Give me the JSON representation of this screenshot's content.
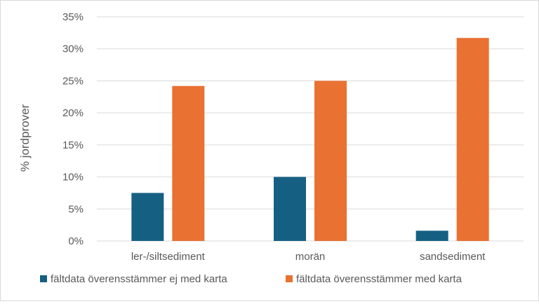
{
  "chart_data": {
    "type": "bar",
    "title": "",
    "xlabel": "",
    "ylabel": "% jordprover",
    "ylim": [
      0,
      35
    ],
    "yticks": [
      "0%",
      "5%",
      "10%",
      "15%",
      "20%",
      "25%",
      "30%",
      "35%"
    ],
    "ytick_values": [
      0,
      5,
      10,
      15,
      20,
      25,
      30,
      35
    ],
    "categories": [
      "ler-/siltsediment",
      "morän",
      "sandsediment"
    ],
    "series": [
      {
        "name": "fältdata överensstämmer ej med karta",
        "values": [
          7.5,
          10.0,
          1.6
        ],
        "color": "#156082"
      },
      {
        "name": "fältdata överensstämmer med karta",
        "values": [
          24.2,
          25.0,
          31.7
        ],
        "color": "#E97132"
      }
    ],
    "grid": true,
    "legend_position": "bottom"
  }
}
